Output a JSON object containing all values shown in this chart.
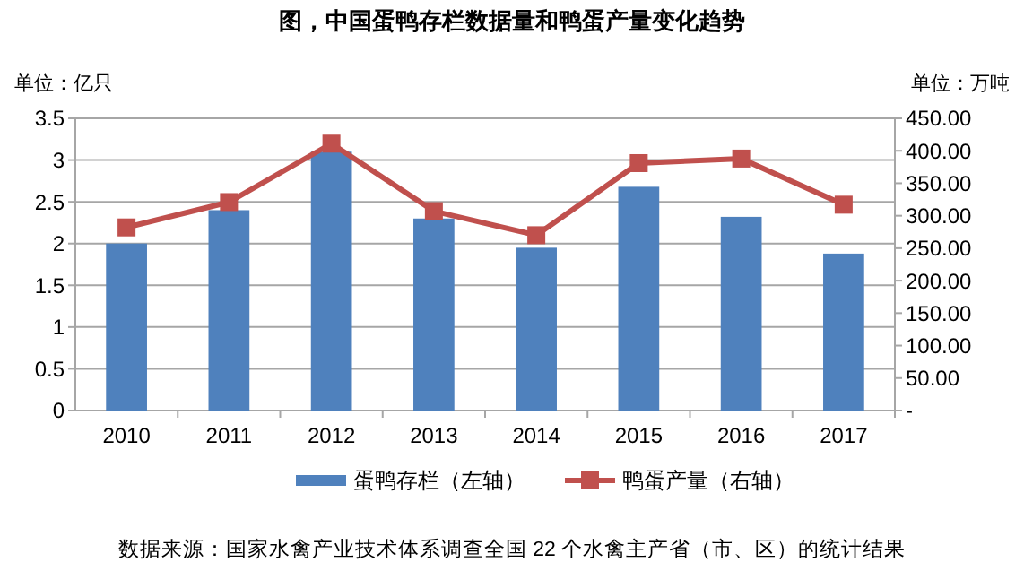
{
  "chart_data": {
    "type": "bar",
    "title": "图，中国蛋鸭存栏数据量和鸭蛋产量变化趋势",
    "ylabel": "单位：亿只",
    "y2label": "单位：万吨",
    "categories": [
      "2010",
      "2011",
      "2012",
      "2013",
      "2014",
      "2015",
      "2016",
      "2017"
    ],
    "series": [
      {
        "name": "蛋鸭存栏（左轴）",
        "color": "#4f81bd",
        "values": [
          2.0,
          2.4,
          3.1,
          2.3,
          1.95,
          2.68,
          2.32,
          1.88
        ]
      },
      {
        "name": "鸭蛋产量（右轴）",
        "type": "line",
        "axis": "y2",
        "color": "#c0504d",
        "marker": "square",
        "values": [
          282,
          321,
          411,
          307,
          270,
          381,
          388,
          317
        ]
      }
    ],
    "ylim": [
      0,
      3.5
    ],
    "yticks": [
      0,
      0.5,
      1,
      1.5,
      2,
      2.5,
      3,
      3.5
    ],
    "y2lim": [
      0,
      450
    ],
    "y2ticks": [
      {
        "value": 0,
        "label": "-"
      },
      {
        "value": 50,
        "label": "50.00"
      },
      {
        "value": 100,
        "label": "100.00"
      },
      {
        "value": 150,
        "label": "150.00"
      },
      {
        "value": 200,
        "label": "200.00"
      },
      {
        "value": 250,
        "label": "250.00"
      },
      {
        "value": 300,
        "label": "300.00"
      },
      {
        "value": 350,
        "label": "350.00"
      },
      {
        "value": 400,
        "label": "400.00"
      },
      {
        "value": 450,
        "label": "450.00"
      }
    ],
    "grid": "y",
    "legend": "bottom",
    "annotations": [
      "数据来源：国家水禽产业技术体系调查全国 22 个水禽主产省（市、区）的统计结果"
    ]
  }
}
